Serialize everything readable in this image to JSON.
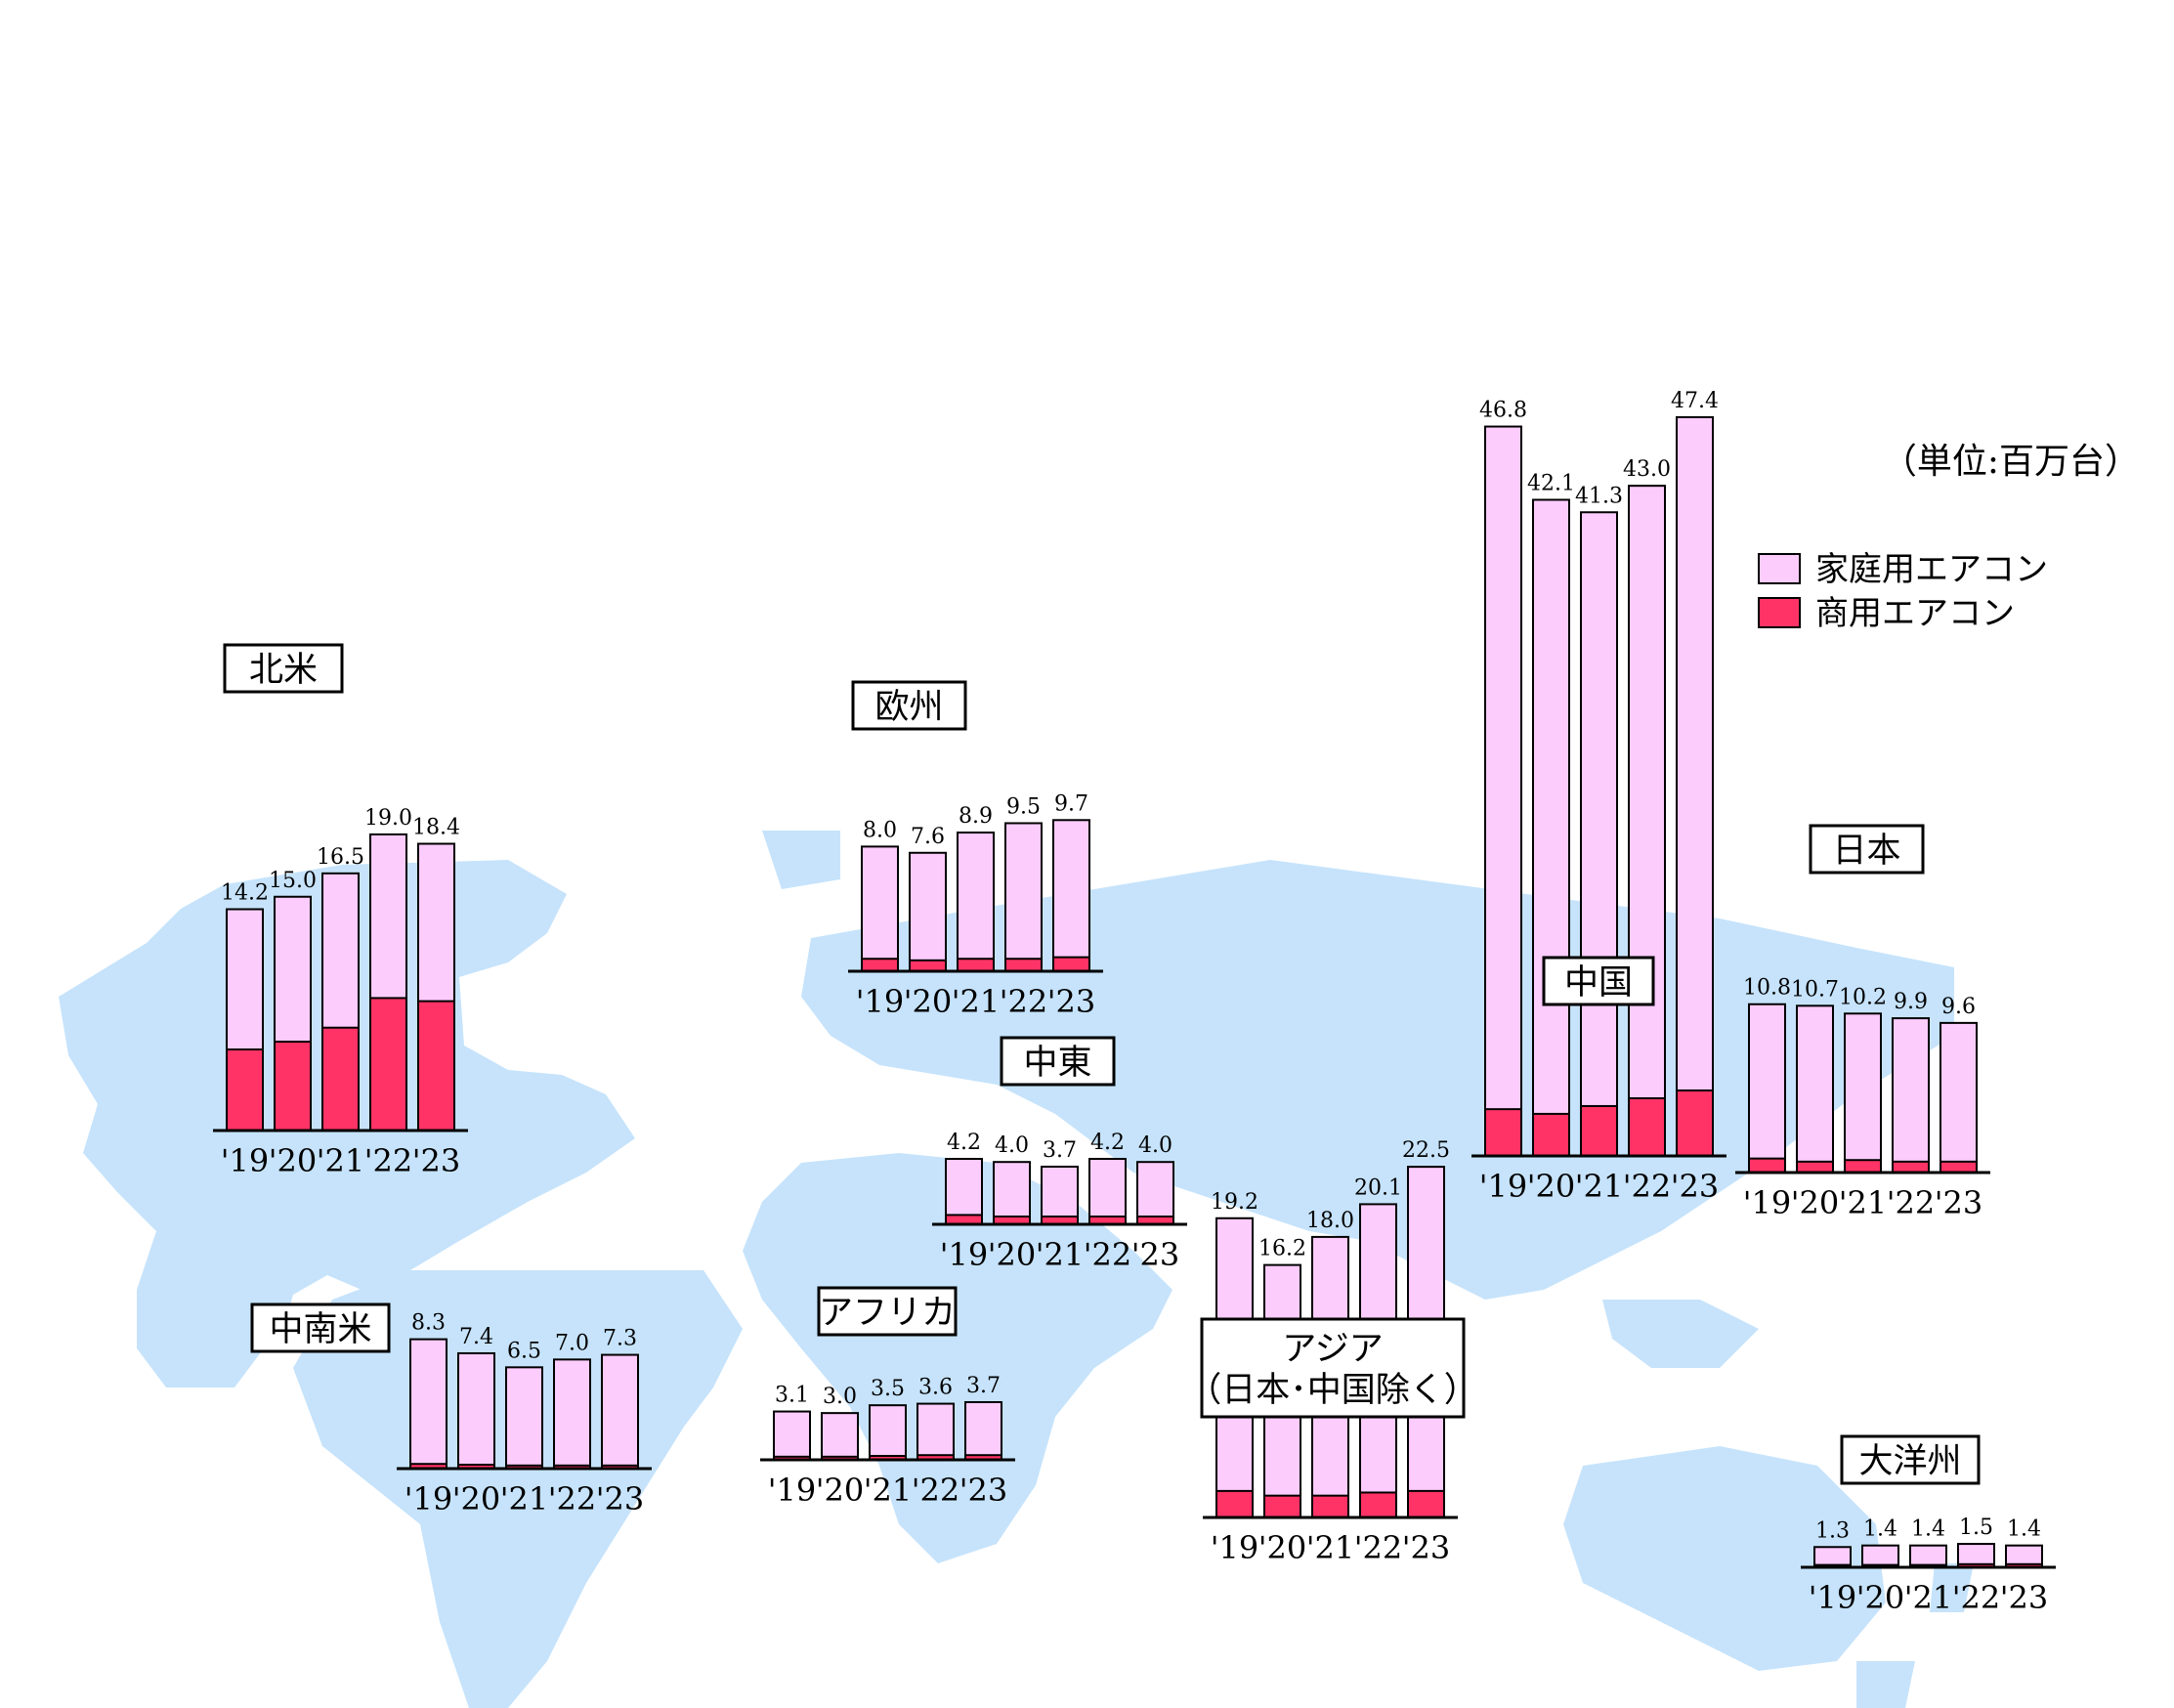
{
  "unit_label": "（単位:百万台）",
  "legend": [
    {
      "label": "家庭用エアコン",
      "color": "#fcccfc"
    },
    {
      "label": "商用エアコン",
      "color": "#ff3366"
    }
  ],
  "colors": {
    "residential": "#fcccfc",
    "commercial": "#ff3366",
    "map": "#c6e3fb",
    "outline": "#000000"
  },
  "chart_data": [
    {
      "type": "bar",
      "stacked": true,
      "title": "北米",
      "categories": [
        "'19",
        "'20",
        "'21",
        "'22",
        "'23"
      ],
      "totals": [
        14.2,
        15.0,
        16.5,
        19.0,
        18.4
      ],
      "commercial": [
        5.2,
        5.7,
        6.6,
        8.5,
        8.3
      ]
    },
    {
      "type": "bar",
      "stacked": true,
      "title": "中南米",
      "categories": [
        "'19",
        "'20",
        "'21",
        "'22",
        "'23"
      ],
      "totals": [
        8.3,
        7.4,
        6.5,
        7.0,
        7.3
      ],
      "commercial": [
        0.3,
        0.25,
        0.2,
        0.2,
        0.2
      ]
    },
    {
      "type": "bar",
      "stacked": true,
      "title": "欧州",
      "categories": [
        "'19",
        "'20",
        "'21",
        "'22",
        "'23"
      ],
      "totals": [
        8.0,
        7.6,
        8.9,
        9.5,
        9.7
      ],
      "commercial": [
        0.8,
        0.7,
        0.8,
        0.8,
        0.9
      ]
    },
    {
      "type": "bar",
      "stacked": true,
      "title": "中東",
      "categories": [
        "'19",
        "'20",
        "'21",
        "'22",
        "'23"
      ],
      "totals": [
        4.2,
        4.0,
        3.7,
        4.2,
        4.0
      ],
      "commercial": [
        0.6,
        0.5,
        0.5,
        0.5,
        0.5
      ]
    },
    {
      "type": "bar",
      "stacked": true,
      "title": "アフリカ",
      "categories": [
        "'19",
        "'20",
        "'21",
        "'22",
        "'23"
      ],
      "totals": [
        3.1,
        3.0,
        3.5,
        3.6,
        3.7
      ],
      "commercial": [
        0.2,
        0.2,
        0.25,
        0.3,
        0.3
      ]
    },
    {
      "type": "bar",
      "stacked": true,
      "title": "アジア\n（日本･中国除く）",
      "categories": [
        "'19",
        "'20",
        "'21",
        "'22",
        "'23"
      ],
      "totals": [
        19.2,
        16.2,
        18.0,
        20.1,
        22.5
      ],
      "commercial": [
        1.7,
        1.4,
        1.4,
        1.6,
        1.7
      ]
    },
    {
      "type": "bar",
      "stacked": true,
      "title": "中国",
      "categories": [
        "'19",
        "'20",
        "'21",
        "'22",
        "'23"
      ],
      "totals": [
        46.8,
        42.1,
        41.3,
        43.0,
        47.4
      ],
      "commercial": [
        3.0,
        2.7,
        3.2,
        3.7,
        4.2
      ]
    },
    {
      "type": "bar",
      "stacked": true,
      "title": "日本",
      "categories": [
        "'19",
        "'20",
        "'21",
        "'22",
        "'23"
      ],
      "totals": [
        10.8,
        10.7,
        10.2,
        9.9,
        9.6
      ],
      "commercial": [
        0.9,
        0.7,
        0.8,
        0.7,
        0.7
      ]
    },
    {
      "type": "bar",
      "stacked": true,
      "title": "大洋州",
      "categories": [
        "'19",
        "'20",
        "'21",
        "'22",
        "'23"
      ],
      "totals": [
        1.3,
        1.4,
        1.4,
        1.5,
        1.4
      ],
      "commercial": [
        0.15,
        0.15,
        0.15,
        0.2,
        0.2
      ]
    }
  ]
}
